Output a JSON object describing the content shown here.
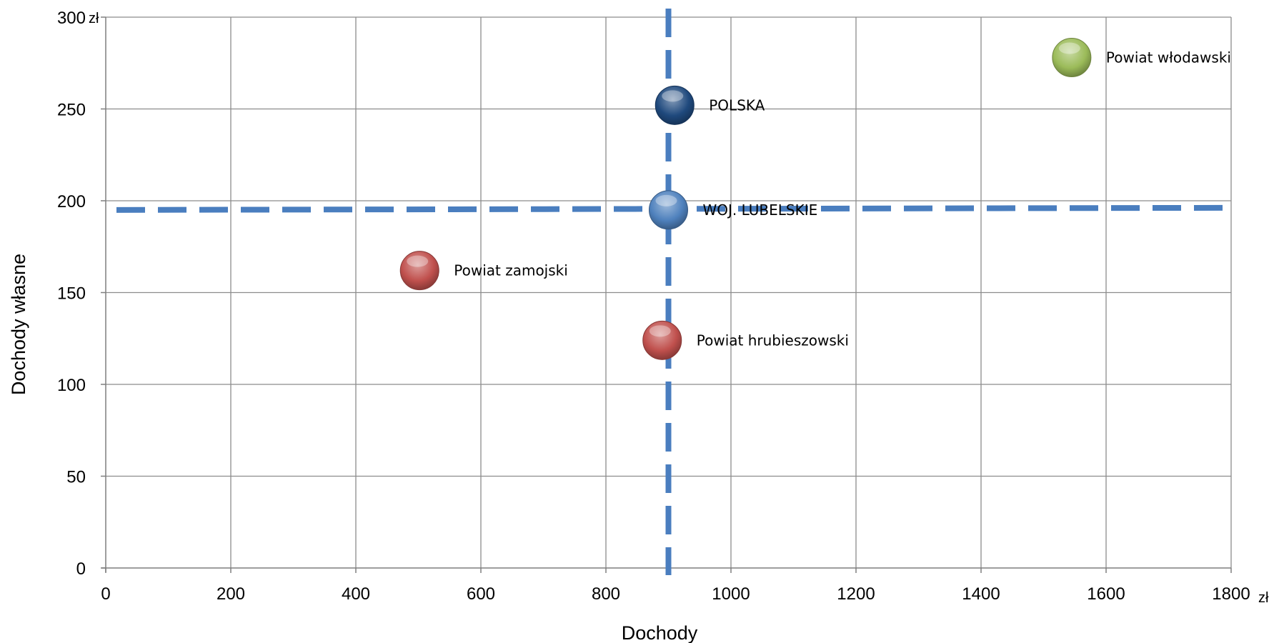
{
  "chart_data": {
    "type": "scatter",
    "xlabel": "Dochody",
    "ylabel": "Dochody własne",
    "x_unit": "zł",
    "y_unit": "zł",
    "xlim": [
      0,
      1800
    ],
    "ylim": [
      0,
      300
    ],
    "x_ticks": [
      0,
      200,
      400,
      600,
      800,
      1000,
      1200,
      1400,
      1600,
      1800
    ],
    "y_ticks": [
      0,
      50,
      100,
      150,
      200,
      250,
      300
    ],
    "grid": true,
    "reference_lines": {
      "x": 900,
      "y": 195
    },
    "points": [
      {
        "label": "Powiat włodawski",
        "x": 1545,
        "y": 278,
        "color": "#9bbb59"
      },
      {
        "label": "POLSKA",
        "x": 910,
        "y": 252,
        "color": "#1f497d"
      },
      {
        "label": "WOJ. LUBELSKIE",
        "x": 900,
        "y": 195,
        "color": "#4f81bd"
      },
      {
        "label": "Powiat zamojski",
        "x": 502,
        "y": 162,
        "color": "#c0504d"
      },
      {
        "label": "Powiat hrubieszowski",
        "x": 890,
        "y": 124,
        "color": "#c0504d"
      }
    ]
  }
}
